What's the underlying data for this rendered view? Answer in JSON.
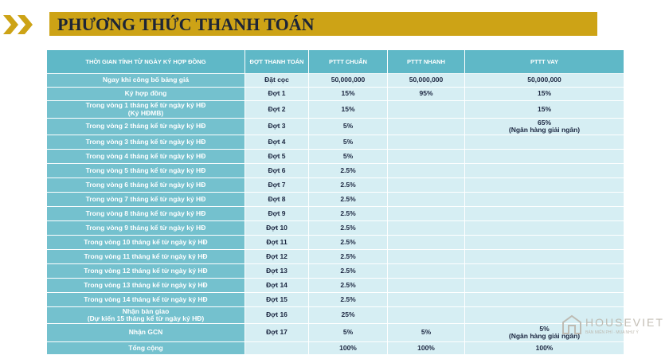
{
  "header": {
    "title": "PHƯƠNG THỨC THANH TOÁN"
  },
  "table": {
    "columns": [
      "THỜI GIAN TÍNH TỪ NGÀY KÝ HỢP ĐỒNG",
      "ĐỢT THANH TOÁN",
      "PTTT CHUẨN",
      "PTTT NHANH",
      "PTTT VAY"
    ],
    "rows": [
      [
        "Ngay khi công bố bảng giá",
        "Đặt cọc",
        "50,000,000",
        "50,000,000",
        "50,000,000"
      ],
      [
        "Ký hợp đồng",
        "Đợt 1",
        "15%",
        "95%",
        "15%"
      ],
      [
        "Trong vòng 1 tháng kể từ ngày ký HĐ\n(Ký HĐMB)",
        "Đợt 2",
        "15%",
        null,
        "15%"
      ],
      [
        "Trong vòng 2 tháng kể từ ngày ký HĐ",
        "Đợt 3",
        "5%",
        null,
        "65%\n(Ngân hàng giải ngân)"
      ],
      [
        "Trong vòng 3 tháng kể từ ngày ký HĐ",
        "Đợt 4",
        "5%",
        null,
        null
      ],
      [
        "Trong vòng 4 tháng kể từ ngày ký HĐ",
        "Đợt 5",
        "5%",
        null,
        null
      ],
      [
        "Trong vòng 5 tháng kể từ ngày ký HĐ",
        "Đợt 6",
        "2.5%",
        null,
        null
      ],
      [
        "Trong vòng 6 tháng kể từ ngày ký HĐ",
        "Đợt 7",
        "2.5%",
        null,
        null
      ],
      [
        "Trong vòng 7 tháng kể từ ngày ký HĐ",
        "Đợt 8",
        "2.5%",
        null,
        null
      ],
      [
        "Trong vòng 8 tháng kể từ ngày ký HĐ",
        "Đợt 9",
        "2.5%",
        null,
        null
      ],
      [
        "Trong vòng 9 tháng kể từ ngày ký HĐ",
        "Đợt 10",
        "2.5%",
        null,
        null
      ],
      [
        "Trong vòng 10 tháng kể từ ngày ký HĐ",
        "Đợt 11",
        "2.5%",
        null,
        null
      ],
      [
        "Trong vòng 11 tháng kể từ ngày ký HĐ",
        "Đợt 12",
        "2.5%",
        null,
        null
      ],
      [
        "Trong vòng 12 tháng kể từ ngày ký HĐ",
        "Đợt 13",
        "2.5%",
        null,
        null
      ],
      [
        "Trong vòng 13 tháng kể từ ngày ký HĐ",
        "Đợt 14",
        "2.5%",
        null,
        null
      ],
      [
        "Trong vòng 14 tháng kể từ ngày ký HĐ",
        "Đợt 15",
        "2.5%",
        null,
        null
      ],
      [
        "Nhận bàn giao\n(Dự kiến 15 tháng kể từ ngày ký HĐ)",
        "Đợt 16",
        "25%",
        null,
        null
      ],
      [
        "Nhận GCN",
        "Đợt 17",
        "5%",
        "5%",
        "5%\n(Ngân hàng giải ngân)"
      ],
      [
        "Tổng cộng",
        null,
        "100%",
        "100%",
        "100%"
      ]
    ]
  },
  "watermark": {
    "brand": "HOUSEVIET",
    "slogan": "BÁN MIỄN PHÍ · MUA NHƯ Ý"
  }
}
